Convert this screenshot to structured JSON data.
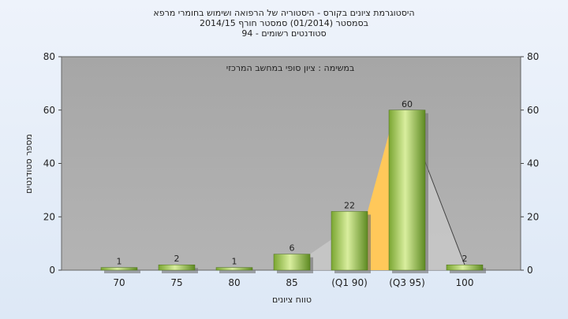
{
  "chart_data": {
    "type": "bar",
    "title_lines": [
      "היסטוגרמת ציונים בקורס - היסטוריה של הרפואה ושימוש בחומרי מרפא",
      "בסמסטר (01/2014) סמסטר חורף 2014/15",
      "סטודנטים רשומים - 94"
    ],
    "annotation": "במשימה : ציון סופי במחשב המרכזי",
    "categories": [
      "70",
      "75",
      "80",
      "85",
      "(Q1 90)",
      "(Q3 95)",
      "100"
    ],
    "values": [
      1,
      2,
      1,
      6,
      22,
      60,
      2
    ],
    "xlabel": "טווח ציונים",
    "ylabel": "מספר סטודנטים",
    "ylim": [
      0,
      80
    ],
    "yticks": [
      0,
      20,
      40,
      60,
      80
    ],
    "grid": false,
    "legend": "none",
    "colors": {
      "plot_bg": "#a9a9a9",
      "bar_light": "#d8ec9c",
      "bar_dark": "#6e9a2a",
      "area_grey": "#c8c8c8",
      "area_orange": "#ffc85a"
    }
  }
}
